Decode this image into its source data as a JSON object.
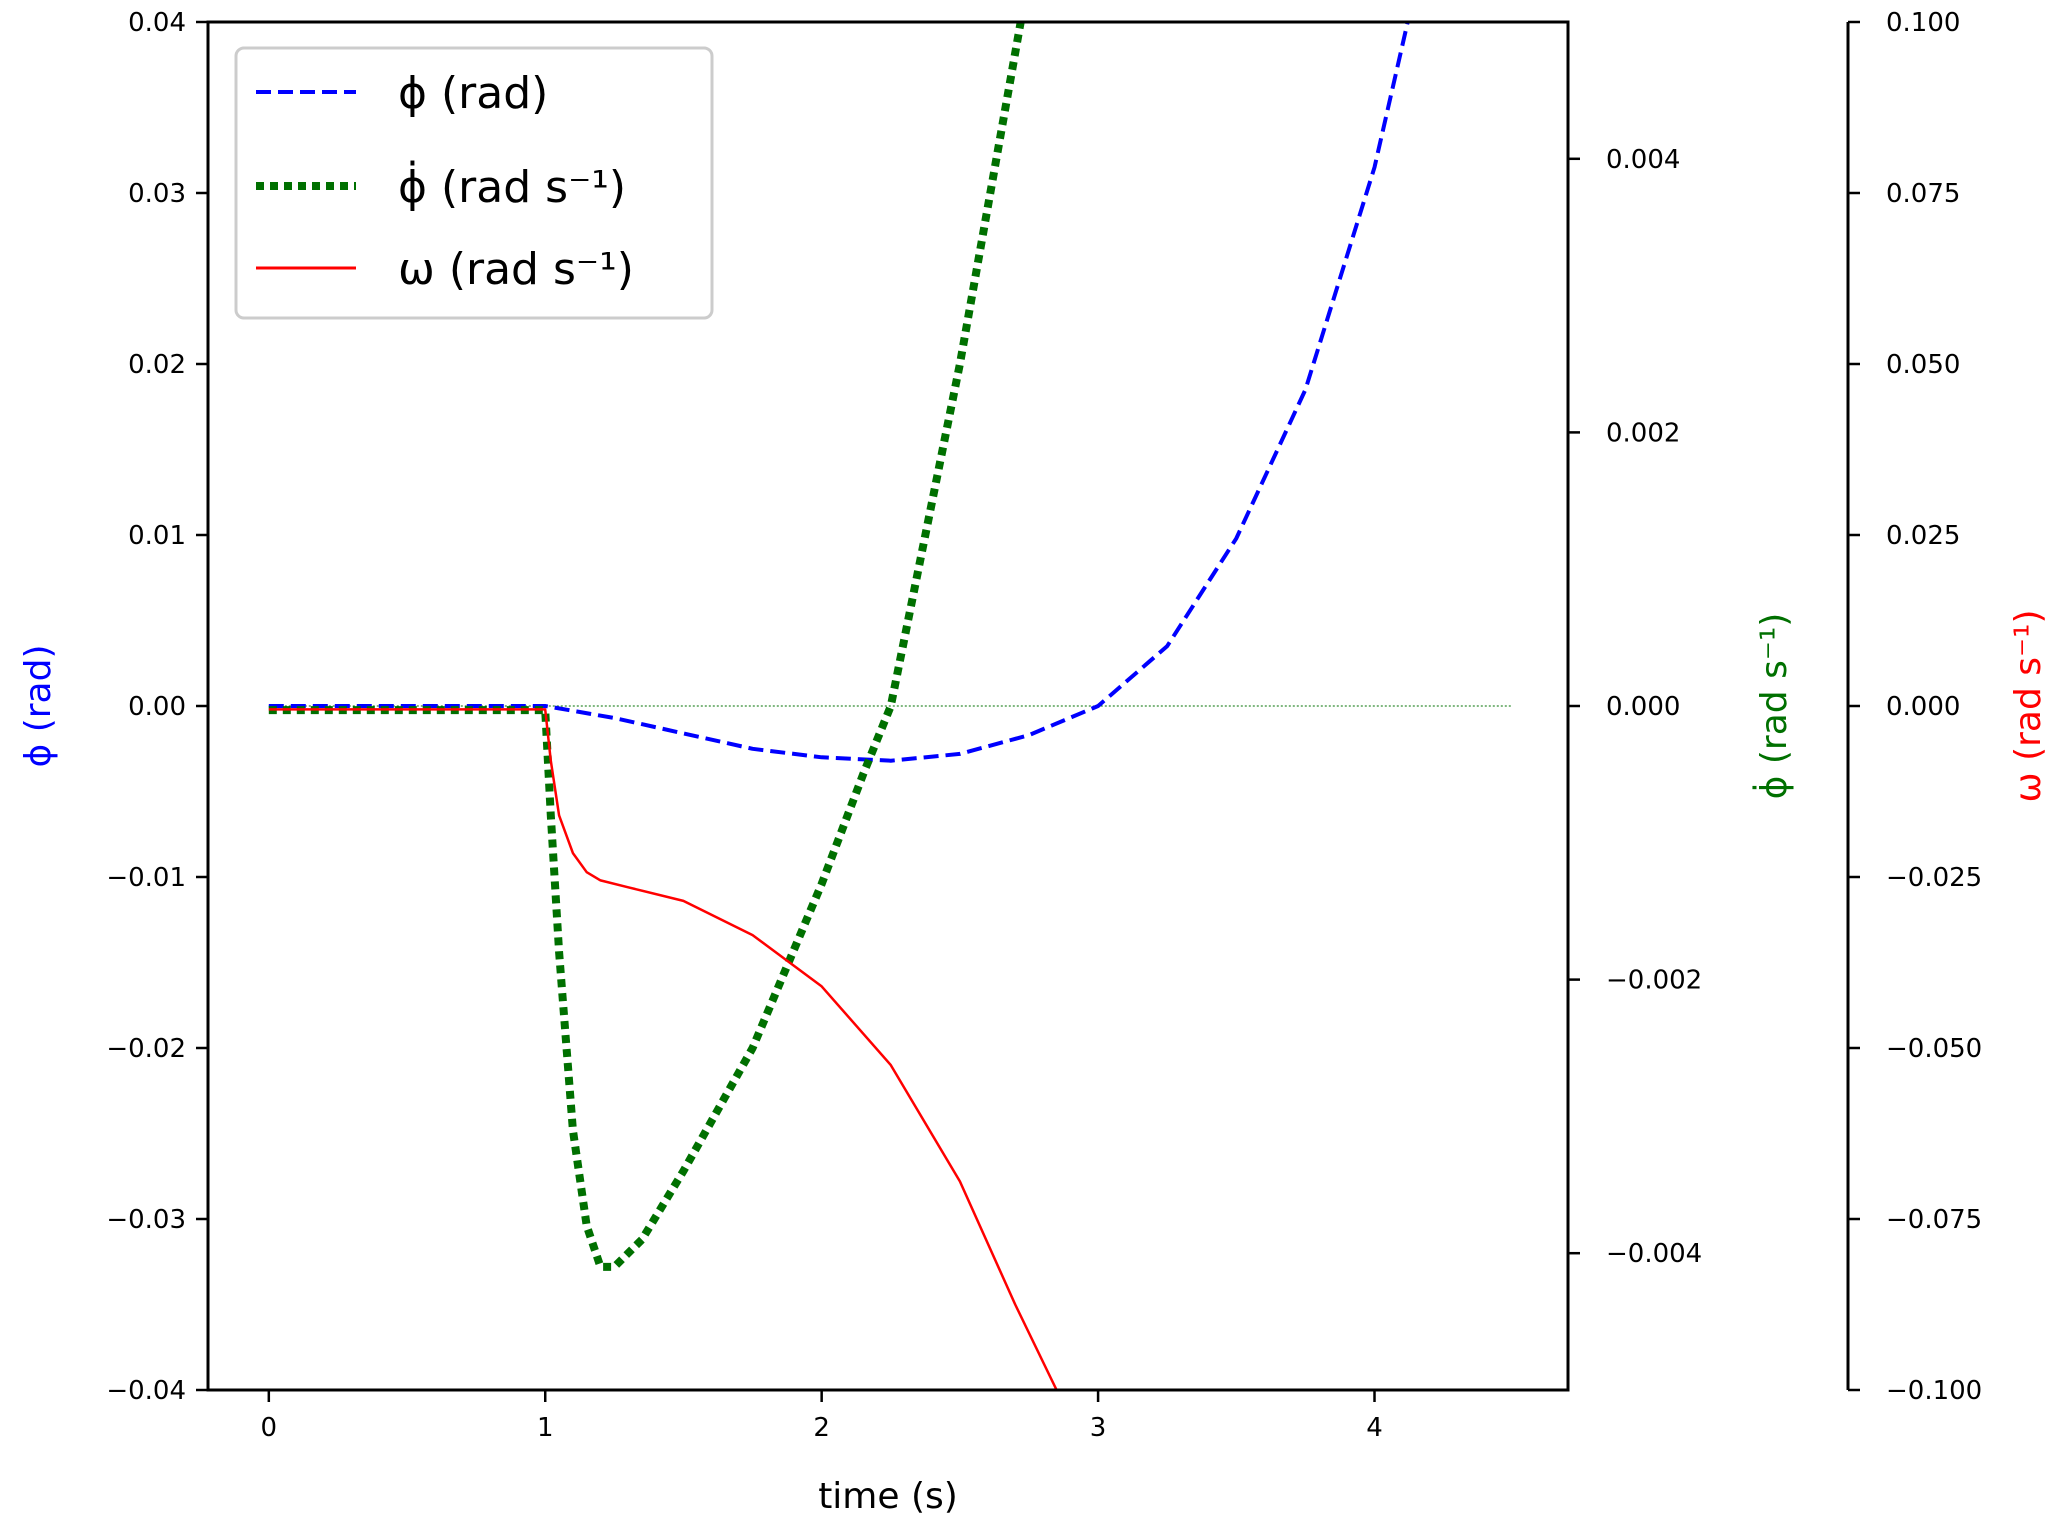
{
  "chart_data": {
    "type": "line",
    "xlabel": "time (s)",
    "xlim": [
      -0.22,
      4.7
    ],
    "x_ticks": [
      0,
      1,
      2,
      3,
      4
    ],
    "x_tick_labels": [
      "0",
      "1",
      "2",
      "3",
      "4"
    ],
    "axes": [
      {
        "id": "phi",
        "side": "left",
        "label": "ϕ (rad)",
        "color": "#0000ff",
        "ylim": [
          -0.04,
          0.04
        ],
        "ticks": [
          -0.04,
          -0.03,
          -0.02,
          -0.01,
          0.0,
          0.01,
          0.02,
          0.03,
          0.04
        ],
        "tick_labels": [
          "−0.04",
          "−0.03",
          "−0.02",
          "−0.01",
          "0.00",
          "0.01",
          "0.02",
          "0.03",
          "0.04"
        ]
      },
      {
        "id": "phidot",
        "side": "right",
        "label": "ϕ̇ (rad s⁻¹)",
        "color": "#007000",
        "ylim": [
          -0.005,
          0.005
        ],
        "ticks": [
          -0.004,
          -0.002,
          0.0,
          0.002,
          0.004
        ],
        "tick_labels": [
          "−0.004",
          "−0.002",
          "0.000",
          "0.002",
          "0.004"
        ]
      },
      {
        "id": "omega",
        "side": "right-outer",
        "label": "ω (rad s⁻¹)",
        "color": "#ff0000",
        "ylim": [
          -0.1,
          0.1
        ],
        "ticks": [
          -0.1,
          -0.075,
          -0.05,
          -0.025,
          0.0,
          0.025,
          0.05,
          0.075,
          0.1
        ],
        "tick_labels": [
          "−0.100",
          "−0.075",
          "−0.050",
          "−0.025",
          "0.000",
          "0.025",
          "0.050",
          "0.075",
          "0.100"
        ]
      }
    ],
    "series": [
      {
        "name": "ϕ (rad)",
        "axis": "phi",
        "color": "#0000ff",
        "style": "dashed",
        "x": [
          0,
          0.5,
          1.0,
          1.25,
          1.5,
          1.75,
          2.0,
          2.25,
          2.5,
          2.75,
          3.0,
          3.25,
          3.5,
          3.75,
          4.0,
          4.12
        ],
        "y": [
          0,
          0,
          0,
          -0.0007,
          -0.0016,
          -0.0025,
          -0.003,
          -0.0032,
          -0.0028,
          -0.0017,
          0.0,
          0.0035,
          0.0098,
          0.0185,
          0.0315,
          0.04
        ]
      },
      {
        "name": "ϕ̇ (rad s⁻¹)",
        "axis": "phidot",
        "color": "#007000",
        "style": "dotted",
        "x": [
          0,
          0.5,
          1.0,
          1.02,
          1.05,
          1.1,
          1.15,
          1.2,
          1.25,
          1.35,
          1.5,
          1.75,
          2.0,
          2.15,
          2.25,
          2.5,
          2.72
        ],
        "y": [
          -3e-05,
          -3e-05,
          -3e-05,
          -0.0008,
          -0.0018,
          -0.0031,
          -0.0038,
          -0.0041,
          -0.0041,
          -0.0039,
          -0.0034,
          -0.0025,
          -0.0013,
          -0.0005,
          0.0,
          0.0025,
          0.005
        ]
      },
      {
        "name": "ω (rad s⁻¹)",
        "axis": "omega",
        "color": "#ff0000",
        "style": "solid",
        "x": [
          0,
          0.5,
          1.0,
          1.02,
          1.05,
          1.1,
          1.15,
          1.2,
          1.3,
          1.5,
          1.75,
          2.0,
          2.25,
          2.5,
          2.7,
          2.85
        ],
        "y": [
          -0.0005,
          -0.0005,
          -0.0005,
          -0.008,
          -0.016,
          -0.0215,
          -0.0243,
          -0.0255,
          -0.0265,
          -0.0285,
          -0.0335,
          -0.041,
          -0.0525,
          -0.0695,
          -0.0875,
          -0.1
        ]
      },
      {
        "name": "",
        "axis": "phidot",
        "color": "#007000",
        "style": "thin",
        "x": [
          0,
          4.5
        ],
        "y": [
          0,
          0
        ]
      }
    ],
    "legend": {
      "position": "top-left",
      "entries": [
        {
          "label": "ϕ (rad)",
          "color": "#0000ff",
          "style": "dashed"
        },
        {
          "label": "ϕ̇ (rad s⁻¹)",
          "color": "#007000",
          "style": "dotted"
        },
        {
          "label": "ω (rad s⁻¹)",
          "color": "#ff0000",
          "style": "solid"
        }
      ]
    }
  }
}
